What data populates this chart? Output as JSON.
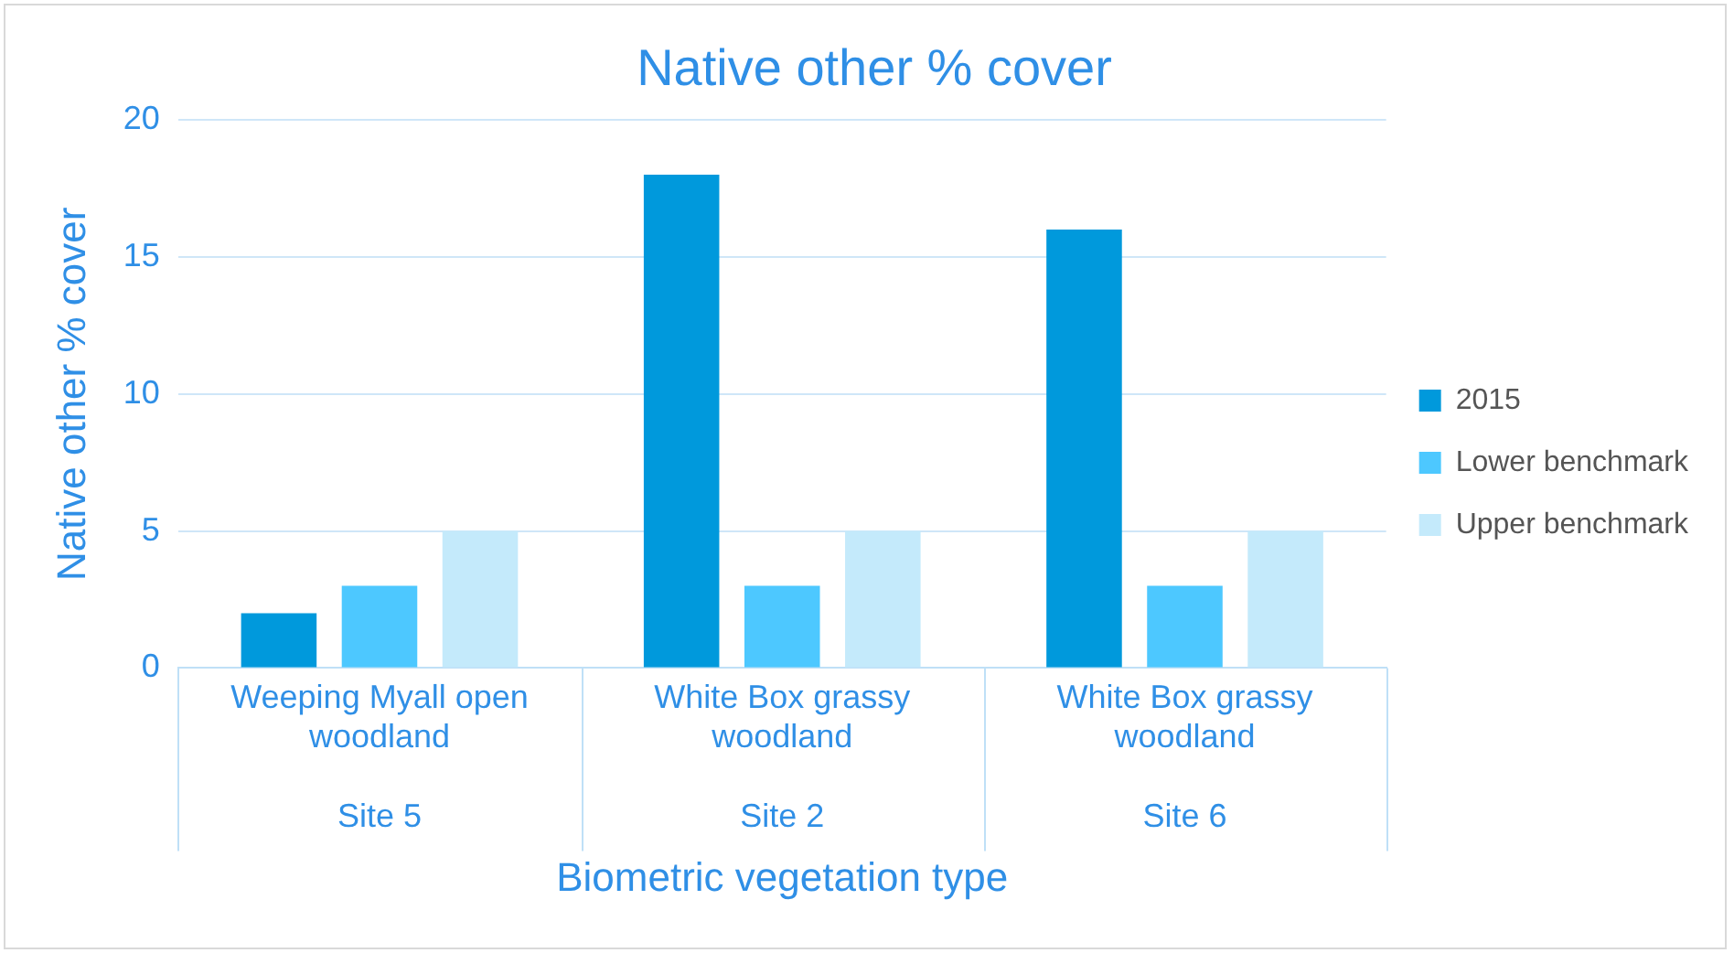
{
  "chart_data": {
    "type": "bar",
    "title": "Native other % cover",
    "xlabel": "Biometric vegetation type",
    "ylabel": "Native other % cover",
    "categories": [
      "Weeping Myall open woodland\nSite 5",
      "White Box grassy woodland\nSite 2",
      "White Box grassy woodland\nSite 6"
    ],
    "series": [
      {
        "name": "2015",
        "color": "#0099dc",
        "values": [
          2,
          18,
          16
        ]
      },
      {
        "name": "Lower benchmark",
        "color": "#4dc8ff",
        "values": [
          3,
          3,
          3
        ]
      },
      {
        "name": "Upper benchmark",
        "color": "#c4eafb",
        "values": [
          5,
          5,
          5
        ]
      }
    ],
    "ylim": [
      0,
      20
    ],
    "yticks": [
      0,
      5,
      10,
      15,
      20
    ],
    "grid": "y",
    "legend": "right"
  }
}
